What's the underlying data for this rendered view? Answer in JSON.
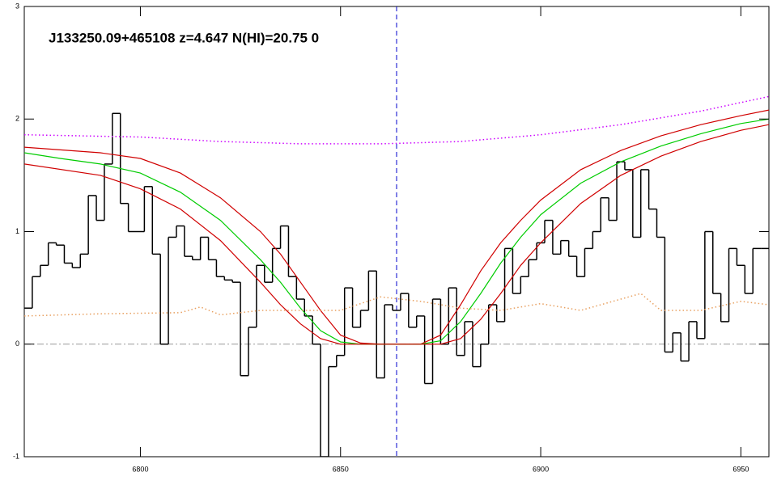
{
  "chart_data": {
    "type": "line",
    "title": "J133250.09+465108 z=4.647 N(HI)=20.75 0",
    "xlim": [
      6771,
      6957
    ],
    "ylim": [
      -1,
      3
    ],
    "xticks": [
      6800,
      6850,
      6900,
      6950
    ],
    "yticks": [
      -1,
      0,
      1,
      2,
      3
    ],
    "hline": 0,
    "vline": 6864,
    "series": [
      {
        "color": "#000000",
        "style": "step",
        "x": [
          6772,
          6774,
          6776,
          6778,
          6780,
          6782,
          6784,
          6786,
          6788,
          6790,
          6792,
          6794,
          6796,
          6798,
          6800,
          6802,
          6804,
          6806,
          6808,
          6810,
          6812,
          6814,
          6816,
          6818,
          6820,
          6822,
          6824,
          6826,
          6828,
          6830,
          6832,
          6834,
          6836,
          6838,
          6840,
          6842,
          6844,
          6846,
          6848,
          6850,
          6852,
          6854,
          6856,
          6858,
          6860,
          6862,
          6864,
          6866,
          6868,
          6870,
          6872,
          6874,
          6876,
          6878,
          6880,
          6882,
          6884,
          6886,
          6888,
          6890,
          6892,
          6894,
          6896,
          6898,
          6900,
          6902,
          6904,
          6906,
          6908,
          6910,
          6912,
          6914,
          6916,
          6918,
          6920,
          6922,
          6924,
          6926,
          6928,
          6930,
          6932,
          6934,
          6936,
          6938,
          6940,
          6942,
          6944,
          6946,
          6948,
          6950,
          6952,
          6954,
          6956
        ],
        "values": [
          0.32,
          0.6,
          0.7,
          0.9,
          0.88,
          0.72,
          0.68,
          0.8,
          1.32,
          1.1,
          1.6,
          2.05,
          1.25,
          1.0,
          1.0,
          1.4,
          0.8,
          0.0,
          0.95,
          1.05,
          0.78,
          0.75,
          0.95,
          0.75,
          0.6,
          0.57,
          0.55,
          -0.28,
          0.15,
          0.7,
          0.55,
          0.85,
          1.05,
          0.6,
          0.4,
          0.25,
          0.0,
          -1.0,
          -0.2,
          -0.1,
          0.5,
          0.15,
          0.3,
          0.65,
          -0.3,
          0.35,
          0.3,
          0.45,
          0.15,
          0.25,
          -0.35,
          0.4,
          0.0,
          0.5,
          -0.1,
          0.2,
          -0.2,
          0.0,
          0.35,
          0.2,
          0.85,
          0.45,
          0.6,
          0.75,
          0.9,
          1.1,
          0.8,
          0.92,
          0.78,
          0.6,
          0.85,
          1.0,
          1.3,
          1.1,
          1.62,
          1.55,
          0.95,
          1.55,
          1.2,
          0.95,
          -0.07,
          0.1,
          -0.15,
          0.2,
          0.05,
          1.0,
          0.45,
          0.2,
          0.85,
          0.7,
          0.45,
          0.85,
          0.85
        ]
      },
      {
        "color": "#d00000",
        "style": "solid",
        "x": [
          6771,
          6790,
          6800,
          6810,
          6820,
          6830,
          6835,
          6840,
          6845,
          6850,
          6855,
          6860,
          6865,
          6870,
          6875,
          6880,
          6885,
          6890,
          6895,
          6900,
          6910,
          6920,
          6930,
          6940,
          6950,
          6957
        ],
        "values": [
          1.75,
          1.7,
          1.65,
          1.52,
          1.3,
          1.0,
          0.8,
          0.55,
          0.3,
          0.08,
          0.01,
          0,
          0,
          0,
          0.08,
          0.35,
          0.65,
          0.9,
          1.1,
          1.28,
          1.55,
          1.72,
          1.85,
          1.95,
          2.03,
          2.08
        ]
      },
      {
        "color": "#00cc00",
        "style": "solid",
        "x": [
          6771,
          6780,
          6790,
          6800,
          6810,
          6820,
          6830,
          6835,
          6840,
          6845,
          6850,
          6855,
          6860,
          6865,
          6870,
          6875,
          6880,
          6885,
          6890,
          6895,
          6900,
          6910,
          6920,
          6930,
          6940,
          6950,
          6957
        ],
        "values": [
          1.7,
          1.65,
          1.6,
          1.52,
          1.35,
          1.1,
          0.75,
          0.55,
          0.32,
          0.12,
          0.02,
          0,
          0,
          0,
          0,
          0.03,
          0.2,
          0.45,
          0.72,
          0.95,
          1.15,
          1.43,
          1.62,
          1.76,
          1.87,
          1.96,
          2.0
        ]
      },
      {
        "color": "#d00000",
        "style": "solid",
        "x": [
          6771,
          6790,
          6800,
          6810,
          6820,
          6830,
          6835,
          6840,
          6845,
          6850,
          6855,
          6860,
          6865,
          6870,
          6875,
          6880,
          6885,
          6890,
          6895,
          6900,
          6910,
          6920,
          6930,
          6940,
          6950,
          6957
        ],
        "values": [
          1.6,
          1.5,
          1.38,
          1.2,
          0.92,
          0.55,
          0.35,
          0.18,
          0.05,
          0,
          0,
          0,
          0,
          0,
          0,
          0.05,
          0.22,
          0.45,
          0.7,
          0.9,
          1.25,
          1.5,
          1.67,
          1.8,
          1.9,
          1.95
        ]
      },
      {
        "color": "#cc00ff",
        "style": "dotted",
        "x": [
          6771,
          6800,
          6820,
          6840,
          6860,
          6880,
          6900,
          6920,
          6940,
          6957
        ],
        "values": [
          1.86,
          1.84,
          1.8,
          1.78,
          1.78,
          1.8,
          1.86,
          1.95,
          2.07,
          2.2
        ]
      },
      {
        "color": "#e8a060",
        "style": "dotted",
        "x": [
          6771,
          6790,
          6810,
          6815,
          6820,
          6830,
          6840,
          6850,
          6860,
          6870,
          6880,
          6890,
          6900,
          6910,
          6915,
          6925,
          6930,
          6940,
          6950,
          6957
        ],
        "values": [
          0.25,
          0.27,
          0.28,
          0.33,
          0.26,
          0.3,
          0.3,
          0.3,
          0.42,
          0.38,
          0.32,
          0.3,
          0.36,
          0.3,
          0.35,
          0.45,
          0.3,
          0.3,
          0.38,
          0.35
        ]
      }
    ]
  }
}
